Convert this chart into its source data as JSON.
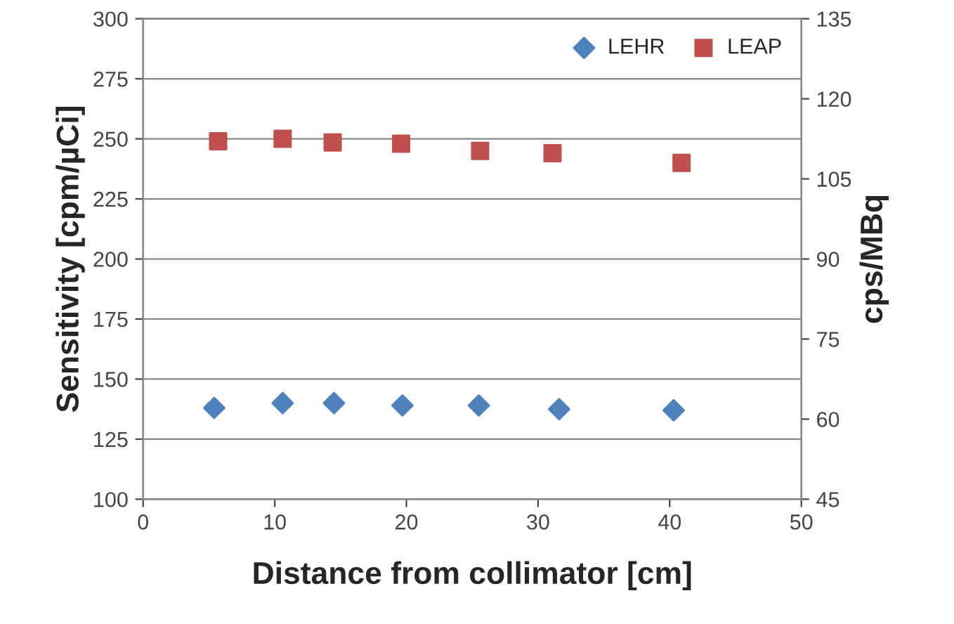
{
  "chart_data": {
    "type": "scatter",
    "xlabel": "Distance from collimator [cm]",
    "ylabel": "Sensitivity [cpm/µCi]",
    "y2label": "cps/MBq",
    "xlim": [
      0,
      50
    ],
    "xticks": [
      0,
      10,
      20,
      30,
      40,
      50
    ],
    "ylim": [
      100,
      300
    ],
    "yticks": [
      100,
      125,
      150,
      175,
      200,
      225,
      250,
      275,
      300
    ],
    "y2lim": [
      45,
      135
    ],
    "y2ticks": [
      45,
      60,
      75,
      90,
      105,
      120,
      135
    ],
    "grid": "y",
    "legend": "top right",
    "series": [
      {
        "name": "LEHR",
        "color": "#4f81bd",
        "marker": "diamond",
        "x": [
          5.4,
          10.6,
          14.5,
          19.7,
          25.5,
          31.6,
          40.3
        ],
        "values": [
          138,
          140,
          140,
          139,
          139,
          137.5,
          137
        ]
      },
      {
        "name": "LEAP",
        "color": "#c0504d",
        "marker": "square",
        "x": [
          5.7,
          10.6,
          14.4,
          19.6,
          25.6,
          31.1,
          40.9
        ],
        "values": [
          249,
          250,
          248.5,
          248,
          245,
          244,
          240
        ]
      }
    ]
  }
}
